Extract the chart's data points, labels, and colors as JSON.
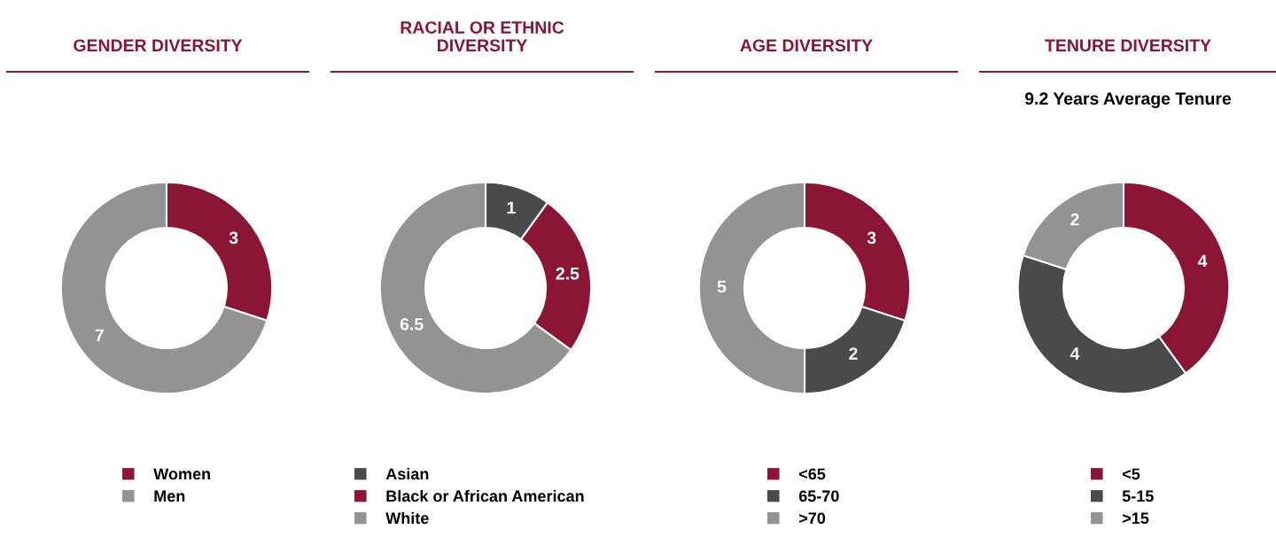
{
  "chart_data": [
    {
      "type": "donut",
      "title": "GENDER DIVERSITY",
      "categories": [
        "Women",
        "Men"
      ],
      "values": [
        3,
        7
      ],
      "colors": [
        "#8b1535",
        "#939393"
      ],
      "data_labels": true,
      "legend": "bottom"
    },
    {
      "type": "donut",
      "title": "RACIAL OR ETHNIC\nDIVERSITY",
      "categories": [
        "Asian",
        "Black or African American",
        "White"
      ],
      "values": [
        1,
        2.5,
        6.5
      ],
      "colors": [
        "#4a4a4a",
        "#8b1535",
        "#939393"
      ],
      "data_labels": true,
      "legend": "bottom"
    },
    {
      "type": "donut",
      "title": "AGE DIVERSITY",
      "categories": [
        "<65",
        "65-70",
        ">70"
      ],
      "values": [
        3,
        2,
        5
      ],
      "colors": [
        "#8b1535",
        "#4a4a4a",
        "#939393"
      ],
      "data_labels": true,
      "legend": "bottom"
    },
    {
      "type": "donut",
      "title": "TENURE DIVERSITY",
      "subtitle": "9.2 Years Average Tenure",
      "categories": [
        "<5",
        "5-15",
        ">15"
      ],
      "values": [
        4,
        4,
        2
      ],
      "colors": [
        "#8b1535",
        "#4a4a4a",
        "#939393"
      ],
      "data_labels": true,
      "legend": "bottom"
    }
  ]
}
